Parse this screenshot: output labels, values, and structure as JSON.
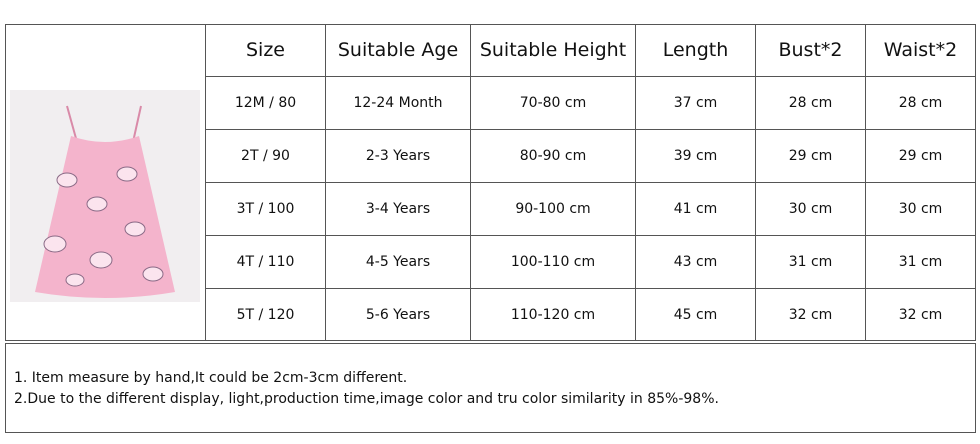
{
  "table": {
    "header": [
      "Size",
      "Suitable Age",
      "Suitable Height",
      "Length",
      "Bust*2",
      "Waist*2"
    ],
    "rows": [
      [
        "12M / 80",
        "12-24 Month",
        "70-80 cm",
        "37 cm",
        "28 cm",
        "28 cm"
      ],
      [
        "2T / 90",
        "2-3 Years",
        "80-90 cm",
        "39 cm",
        "29 cm",
        "29 cm"
      ],
      [
        "3T / 100",
        "3-4 Years",
        "90-100 cm",
        "41 cm",
        "30 cm",
        "30 cm"
      ],
      [
        "4T / 110",
        "4-5 Years",
        "100-110 cm",
        "43 cm",
        "31 cm",
        "31 cm"
      ],
      [
        "5T / 120",
        "5-6 Years",
        "110-120 cm",
        "45 cm",
        "32 cm",
        "32 cm"
      ]
    ]
  },
  "notes": [
    "1. Item measure by hand,It could be 2cm-3cm different.",
    "2.Due to the different display, light,production time,image color and tru color similarity in 85%-98%."
  ]
}
